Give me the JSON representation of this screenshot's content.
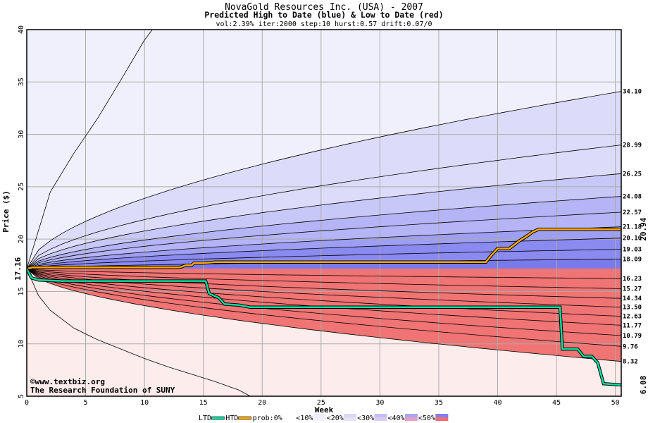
{
  "chart_data": {
    "type": "area",
    "title": "NovaGold Resources Inc. (USA) - 2007",
    "subtitle": "Predicted High to Date (blue) &  Low to Date (red)",
    "params": "vol:2.39% iter:2000 step:10 hurst:0.57 drift:0.07/0",
    "xlabel": "Week",
    "ylabel": "Price ($)",
    "xlim": [
      0,
      50.5
    ],
    "ylim": [
      5,
      40
    ],
    "x_ticks": [
      0,
      5,
      10,
      15,
      20,
      25,
      30,
      35,
      40,
      45,
      50
    ],
    "y_ticks": [
      5,
      10,
      15,
      20,
      25,
      30,
      35,
      40
    ],
    "grid": true,
    "start_price": 17.16,
    "start_price_label": "17.16",
    "high_band_ends": [
      34.1,
      28.99,
      26.25,
      24.08,
      22.57,
      21.18,
      20.1,
      19.03,
      18.09
    ],
    "high_band_labels": [
      "34.10",
      "28.99",
      "26.25",
      "24.08",
      "22.57",
      "21.18",
      "20.10",
      "19.03",
      "18.09"
    ],
    "low_band_ends": [
      16.23,
      15.27,
      14.34,
      13.5,
      12.63,
      11.77,
      10.79,
      9.76,
      8.32
    ],
    "low_band_labels": [
      "16.23",
      "15.27",
      "14.34",
      "13.50",
      "12.63",
      "11.77",
      "10.79",
      "9.76",
      "8.32"
    ],
    "high_outer": {
      "x": [
        0,
        2,
        4,
        6,
        8,
        10,
        11
      ],
      "y": [
        17.16,
        24.5,
        28.2,
        31.5,
        35.2,
        39.0,
        40.5
      ]
    },
    "low_outer": {
      "x": [
        0,
        1,
        2,
        4,
        6,
        8,
        10,
        12,
        14,
        16,
        18,
        19
      ],
      "y": [
        17.16,
        14.6,
        13.2,
        11.5,
        10.4,
        9.5,
        8.6,
        7.8,
        7.1,
        6.4,
        5.6,
        5.0
      ]
    },
    "series": [
      {
        "name": "HTD",
        "color": "#ffaa00",
        "x": [
          0,
          0.5,
          13,
          13.5,
          14,
          14.2,
          15,
          16,
          20,
          30,
          39,
          39.5,
          40,
          41,
          41.8,
          42.5,
          43,
          43.5,
          50.5
        ],
        "y": [
          17.16,
          17.3,
          17.3,
          17.5,
          17.5,
          17.7,
          17.7,
          17.8,
          17.8,
          17.8,
          17.8,
          18.5,
          19.1,
          19.1,
          19.8,
          20.3,
          20.7,
          20.94,
          20.94
        ]
      },
      {
        "name": "LTD",
        "color": "#00e0a0",
        "x": [
          0,
          0.4,
          1,
          3,
          5,
          10,
          15.2,
          15.5,
          16.3,
          16.8,
          18,
          19,
          20,
          30,
          40,
          45.3,
          45.5,
          46.8,
          47.3,
          48,
          48.5,
          49,
          50.5
        ],
        "y": [
          17.16,
          16.3,
          16.1,
          16.0,
          16.0,
          16.0,
          16.0,
          14.8,
          14.4,
          13.8,
          13.7,
          13.5,
          13.5,
          13.5,
          13.5,
          13.5,
          9.5,
          9.5,
          8.8,
          8.8,
          8.2,
          6.2,
          6.08
        ]
      }
    ],
    "htd_end_label": "20.94",
    "ltd_end_label": "6.08",
    "legend": {
      "position": "bottom",
      "items": [
        "LTD",
        "HTD",
        "prob:0%",
        "<10%",
        "<20%",
        "<30%",
        "<40%",
        "<50%"
      ]
    },
    "credit_lines": [
      "©www.textbiz.org",
      "The Research Foundation of SUNY"
    ],
    "colors": {
      "grid": "#aaaaaa",
      "border": "#000000",
      "blue_bands": [
        "#f0f0fc",
        "#dcdcfa",
        "#c8c8f8",
        "#b4b4f6",
        "#9e9ef2",
        "#8a8af0",
        "#7a7aea"
      ],
      "red_bands": [
        "#fdecec",
        "#fbd8d8",
        "#f9c4c4",
        "#f7aeae",
        "#f59a9a",
        "#f38686",
        "#f07474"
      ],
      "htd_label_color": "#b08800",
      "ltd_label_color": "#00a070"
    }
  }
}
